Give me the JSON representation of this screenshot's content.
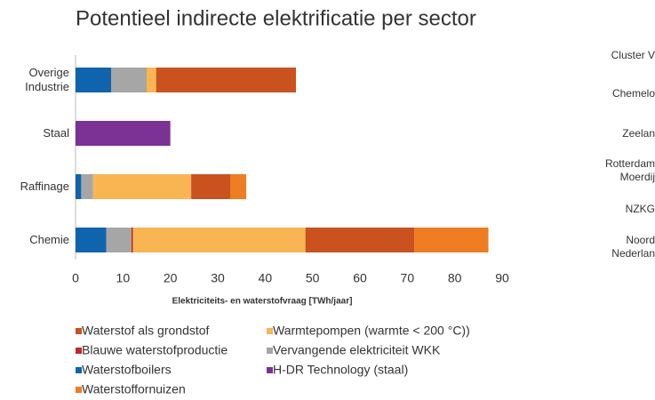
{
  "chart_data": [
    {
      "type": "bar",
      "orientation": "horizontal",
      "stacked": true,
      "title": "Potentieel indirecte elektrificatie per sector",
      "xlabel": "Elektriciteits- en waterstofvraag [TWh/jaar]",
      "categories": [
        "Overige Industrie",
        "Staal",
        "Raffinage",
        "Chemie"
      ],
      "series": [
        {
          "name": "Waterstofboilers",
          "color": "#1064ad",
          "values": [
            7.5,
            0,
            1.2,
            6.5
          ]
        },
        {
          "name": "Vervangende elektriciteit WKK",
          "color": "#a6a6a6",
          "values": [
            7.5,
            0,
            2.5,
            5.3
          ]
        },
        {
          "name": "Blauwe waterstofproductie",
          "color": "#c0272d",
          "values": [
            0,
            0,
            0,
            0.3
          ]
        },
        {
          "name": "Warmtepompen (warmte < 200 °C))",
          "color": "#f8b552",
          "values": [
            2,
            0,
            20.7,
            36.4
          ]
        },
        {
          "name": "Waterstof als grondstof",
          "color": "#c9521f",
          "values": [
            29.5,
            0,
            8.3,
            23
          ]
        },
        {
          "name": "Waterstoffornuizen",
          "color": "#ef7d22",
          "values": [
            0,
            0,
            3.3,
            15.6
          ]
        },
        {
          "name": "H-DR Technology (staal)",
          "color": "#7b3294",
          "values": [
            0,
            20,
            0,
            0
          ]
        }
      ],
      "xlim": [
        0,
        90
      ],
      "xticks": [
        0,
        10,
        20,
        30,
        40,
        50,
        60,
        70,
        80,
        90
      ],
      "grid": false
    },
    {
      "type": "bar",
      "categories": [
        "Cluster V",
        "Chemelo",
        "Zeelan",
        "Rotterdam Moerdij",
        "NZKG",
        "Noord Nederlan"
      ]
    }
  ]
}
